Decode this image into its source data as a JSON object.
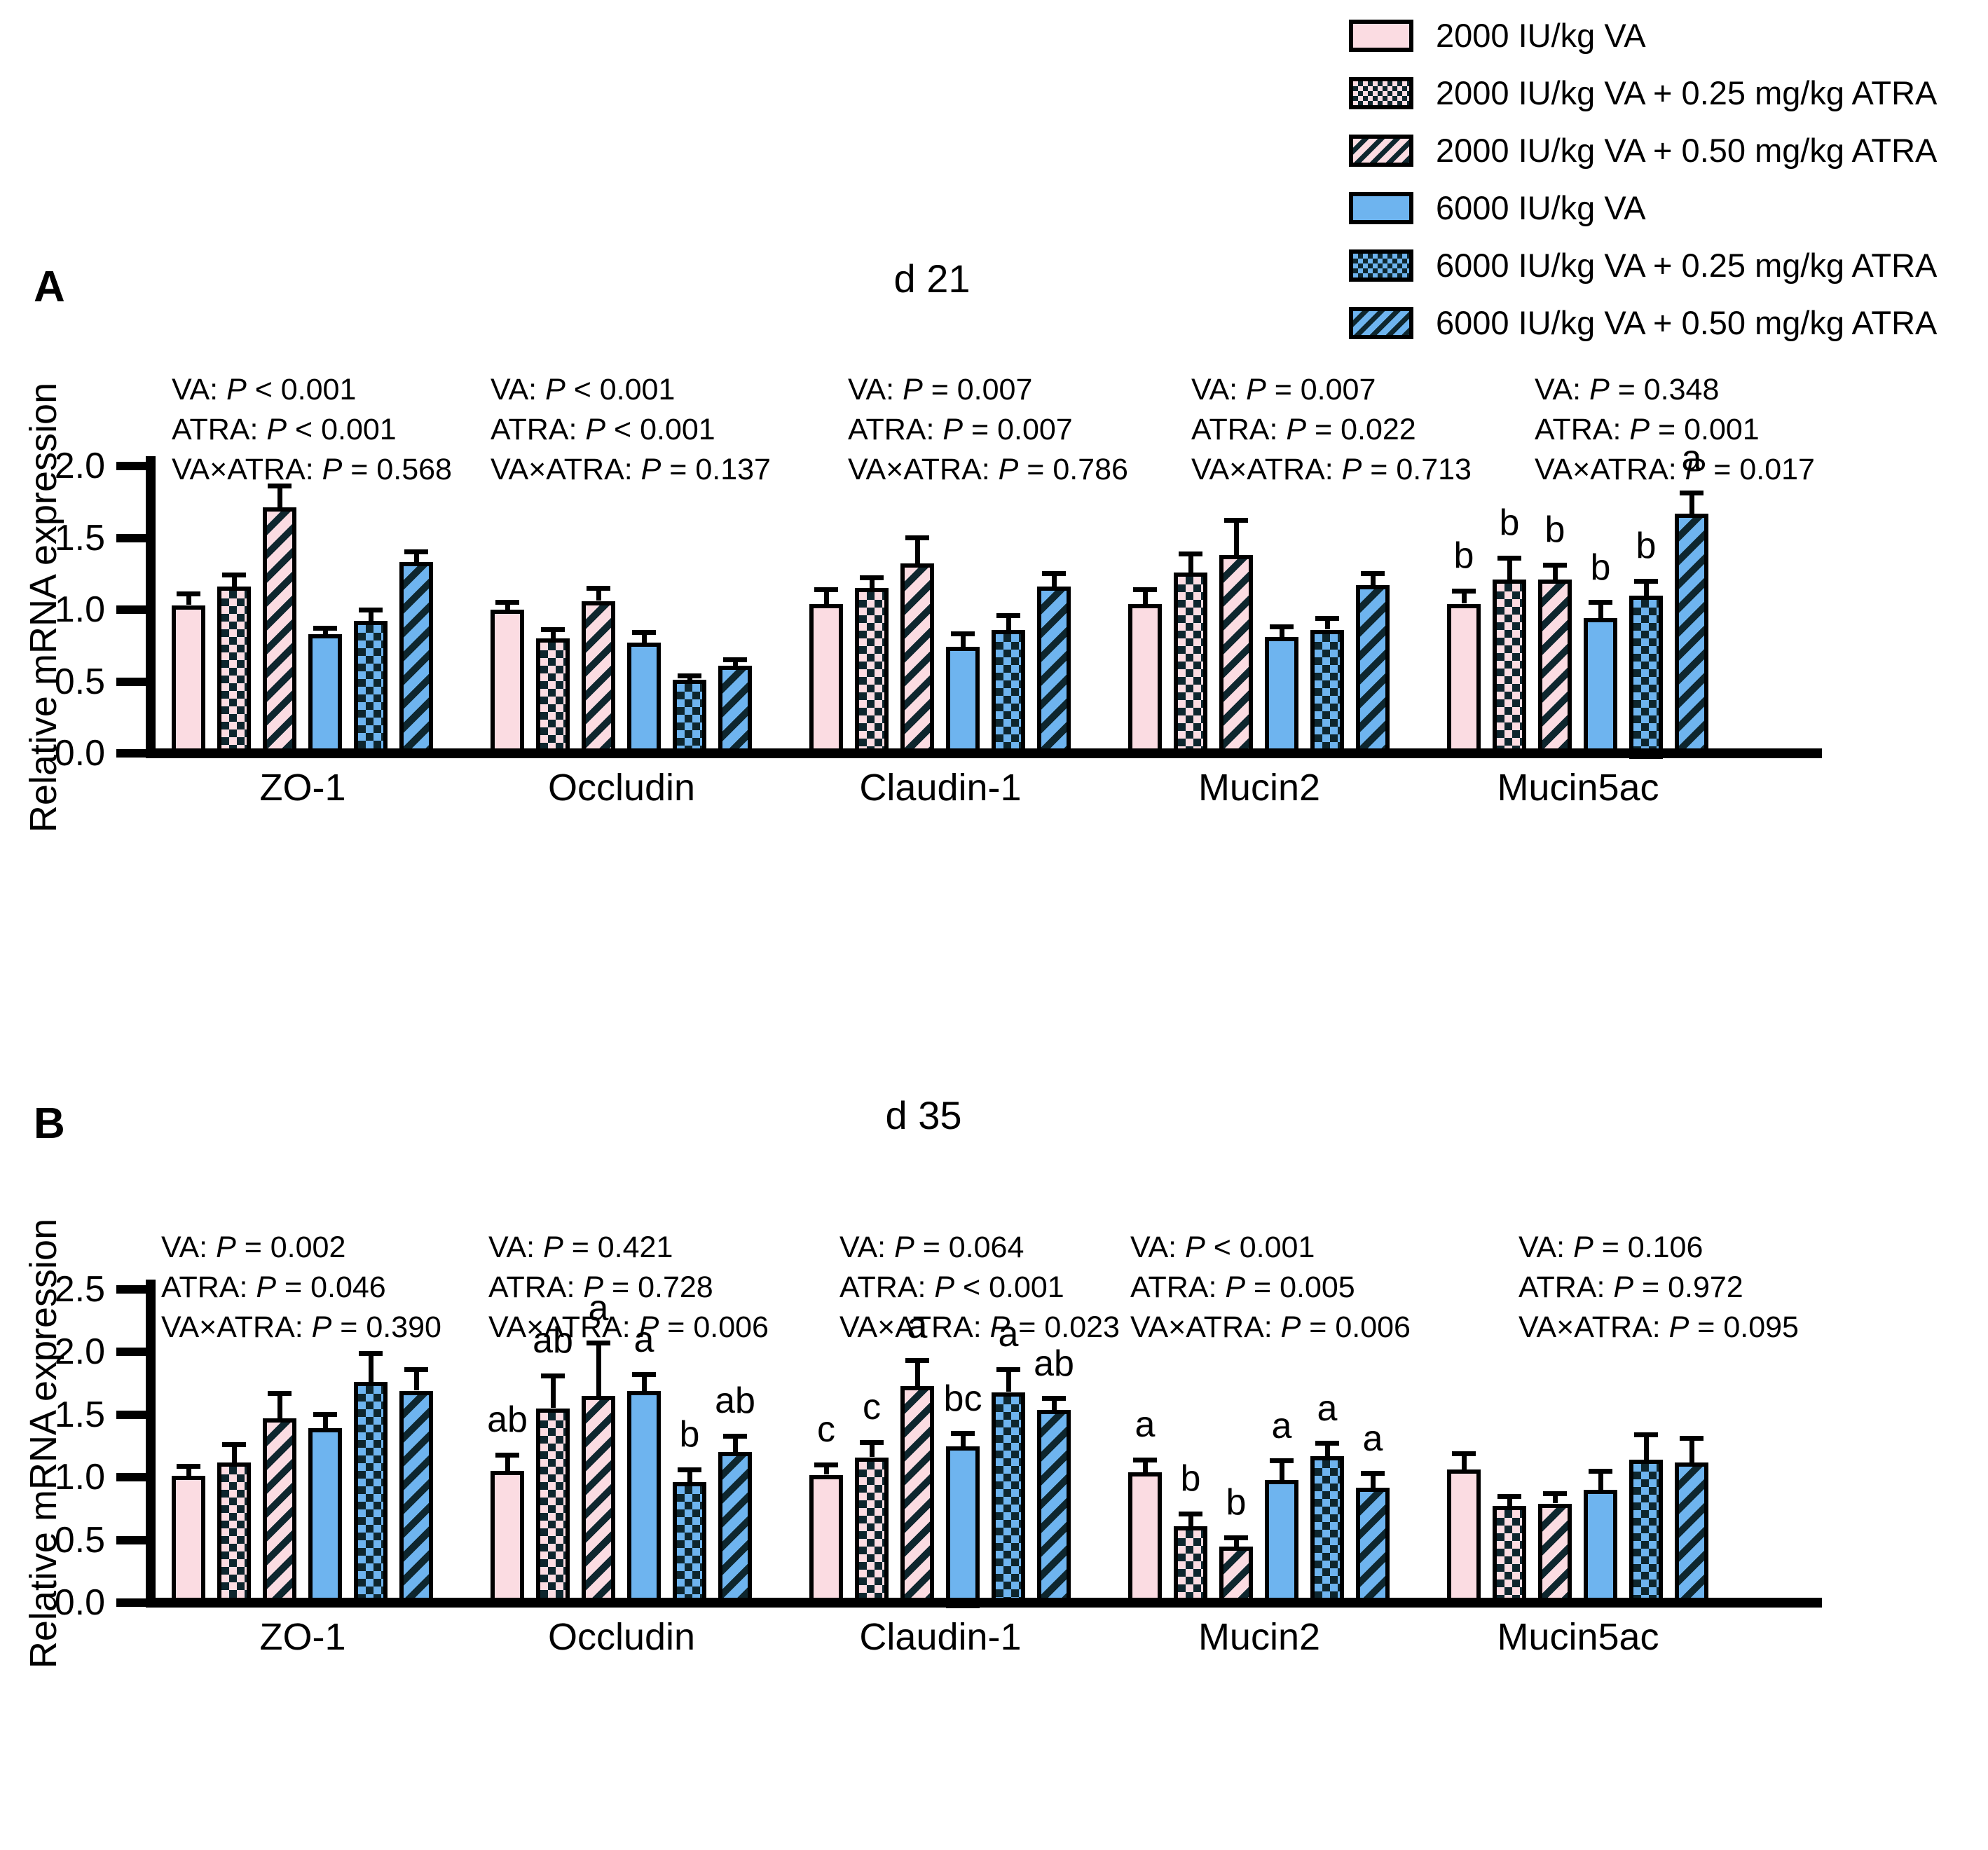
{
  "legend": {
    "items": [
      {
        "label": "2000 IU/kg VA",
        "pattern": "pink-solid"
      },
      {
        "label": "2000 IU/kg VA + 0.25 mg/kg ATRA",
        "pattern": "pink-check"
      },
      {
        "label": "2000 IU/kg VA + 0.50 mg/kg ATRA",
        "pattern": "pink-stripe"
      },
      {
        "label": "6000 IU/kg VA",
        "pattern": "blue-solid"
      },
      {
        "label": "6000 IU/kg VA + 0.25 mg/kg ATRA",
        "pattern": "blue-check"
      },
      {
        "label": "6000 IU/kg VA + 0.50 mg/kg ATRA",
        "pattern": "blue-stripe"
      }
    ]
  },
  "colors": {
    "pink": "#fbdce2",
    "blue": "#6eb4ef",
    "pattern_dark": "#0e262e",
    "outline": "#000000"
  },
  "p_labels": {
    "va": "VA",
    "atra": "ATRA",
    "interaction": "VA×ATRA"
  },
  "chart_data": [
    {
      "type": "bar",
      "panel_label": "A",
      "title": "d 21",
      "ylabel": "Relative mRNA expression",
      "ylim": [
        0,
        2.0
      ],
      "yticks": [
        "2.0",
        "1.5",
        "1.0",
        "0.5",
        "0.0"
      ],
      "legend_position": "top-right",
      "grid": false,
      "categories": [
        "ZO-1",
        "Occludin",
        "Claudin-1",
        "Mucin2",
        "Mucin5ac"
      ],
      "series_names": [
        "2000 IU/kg VA",
        "2000 IU/kg VA + 0.25 mg/kg ATRA",
        "2000 IU/kg VA + 0.50 mg/kg ATRA",
        "6000 IU/kg VA",
        "6000 IU/kg VA + 0.25 mg/kg ATRA",
        "6000 IU/kg VA + 0.50 mg/kg ATRA"
      ],
      "groups": [
        {
          "gene": "ZO-1",
          "values": [
            1.03,
            1.16,
            1.71,
            0.83,
            0.92,
            1.33
          ],
          "errors": [
            0.08,
            0.08,
            0.15,
            0.04,
            0.08,
            0.07
          ],
          "letters": null,
          "p": {
            "va": [
              "<",
              "0.001"
            ],
            "atra": [
              "<",
              "0.001"
            ],
            "interaction": [
              "=",
              "0.568"
            ]
          }
        },
        {
          "gene": "Occludin",
          "values": [
            1.0,
            0.8,
            1.06,
            0.77,
            0.51,
            0.61
          ],
          "errors": [
            0.05,
            0.06,
            0.09,
            0.07,
            0.03,
            0.04
          ],
          "letters": null,
          "p": {
            "va": [
              "<",
              "0.001"
            ],
            "atra": [
              "<",
              "0.001"
            ],
            "interaction": [
              "=",
              "0.137"
            ]
          }
        },
        {
          "gene": "Claudin-1",
          "values": [
            1.04,
            1.15,
            1.32,
            0.74,
            0.86,
            1.16
          ],
          "errors": [
            0.1,
            0.07,
            0.18,
            0.09,
            0.1,
            0.09
          ],
          "letters": null,
          "p": {
            "va": [
              "=",
              "0.007"
            ],
            "atra": [
              "=",
              "0.007"
            ],
            "interaction": [
              "=",
              "0.786"
            ]
          }
        },
        {
          "gene": "Mucin2",
          "values": [
            1.04,
            1.26,
            1.38,
            0.81,
            0.86,
            1.17
          ],
          "errors": [
            0.1,
            0.13,
            0.24,
            0.07,
            0.08,
            0.08
          ],
          "letters": null,
          "p": {
            "va": [
              "=",
              "0.007"
            ],
            "atra": [
              "=",
              "0.022"
            ],
            "interaction": [
              "=",
              "0.713"
            ]
          }
        },
        {
          "gene": "Mucin5ac",
          "values": [
            1.04,
            1.21,
            1.21,
            0.94,
            1.1,
            1.67
          ],
          "errors": [
            0.09,
            0.15,
            0.1,
            0.11,
            0.1,
            0.14
          ],
          "letters": [
            "b",
            "b",
            "b",
            "b",
            "b",
            "a"
          ],
          "p": {
            "va": [
              "=",
              "0.348"
            ],
            "atra": [
              "=",
              "0.001"
            ],
            "interaction": [
              "=",
              "0.017"
            ]
          }
        }
      ]
    },
    {
      "type": "bar",
      "panel_label": "B",
      "title": "d 35",
      "ylabel": "Relative mRNA expression",
      "ylim": [
        0,
        2.5
      ],
      "yticks": [
        "2.5",
        "2.0",
        "1.5",
        "1.0",
        "0.5",
        "0.0"
      ],
      "grid": false,
      "categories": [
        "ZO-1",
        "Occludin",
        "Claudin-1",
        "Mucin2",
        "Mucin5ac"
      ],
      "series_names": [
        "2000 IU/kg VA",
        "2000 IU/kg VA + 0.25 mg/kg ATRA",
        "2000 IU/kg VA + 0.50 mg/kg ATRA",
        "6000 IU/kg VA",
        "6000 IU/kg VA + 0.25 mg/kg ATRA",
        "6000 IU/kg VA + 0.50 mg/kg ATRA"
      ],
      "groups": [
        {
          "gene": "ZO-1",
          "values": [
            1.01,
            1.12,
            1.47,
            1.39,
            1.76,
            1.69
          ],
          "errors": [
            0.08,
            0.14,
            0.2,
            0.11,
            0.23,
            0.17
          ],
          "letters": null,
          "p": {
            "va": [
              "=",
              "0.002"
            ],
            "atra": [
              "=",
              "0.046"
            ],
            "interaction": [
              "=",
              "0.390"
            ]
          }
        },
        {
          "gene": "Occludin",
          "values": [
            1.05,
            1.55,
            1.65,
            1.69,
            0.96,
            1.2
          ],
          "errors": [
            0.13,
            0.26,
            0.42,
            0.13,
            0.1,
            0.13
          ],
          "letters": [
            "ab",
            "ab",
            "a",
            "a",
            "b",
            "ab"
          ],
          "p": {
            "va": [
              "=",
              "0.421"
            ],
            "atra": [
              "=",
              "0.728"
            ],
            "interaction": [
              "=",
              "0.006"
            ]
          }
        },
        {
          "gene": "Claudin-1",
          "values": [
            1.02,
            1.16,
            1.73,
            1.25,
            1.68,
            1.54
          ],
          "errors": [
            0.08,
            0.12,
            0.2,
            0.1,
            0.18,
            0.09
          ],
          "letters": [
            "c",
            "c",
            "a",
            "bc",
            "a",
            "ab"
          ],
          "p": {
            "va": [
              "=",
              "0.064"
            ],
            "atra": [
              "<",
              "0.001"
            ],
            "interaction": [
              "=",
              "0.023"
            ]
          }
        },
        {
          "gene": "Mucin2",
          "values": [
            1.04,
            0.61,
            0.45,
            0.98,
            1.17,
            0.92
          ],
          "errors": [
            0.1,
            0.1,
            0.07,
            0.15,
            0.1,
            0.11
          ],
          "letters": [
            "a",
            "b",
            "b",
            "a",
            "a",
            "a"
          ],
          "p": {
            "va": [
              "<",
              "0.001"
            ],
            "atra": [
              "=",
              "0.005"
            ],
            "interaction": [
              "=",
              "0.006"
            ]
          }
        },
        {
          "gene": "Mucin5ac",
          "values": [
            1.06,
            0.77,
            0.79,
            0.9,
            1.14,
            1.12
          ],
          "errors": [
            0.13,
            0.08,
            0.08,
            0.15,
            0.2,
            0.19
          ],
          "letters": null,
          "p": {
            "va": [
              "=",
              "0.106"
            ],
            "atra": [
              "=",
              "0.972"
            ],
            "interaction": [
              "=",
              "0.095"
            ]
          }
        }
      ]
    }
  ]
}
